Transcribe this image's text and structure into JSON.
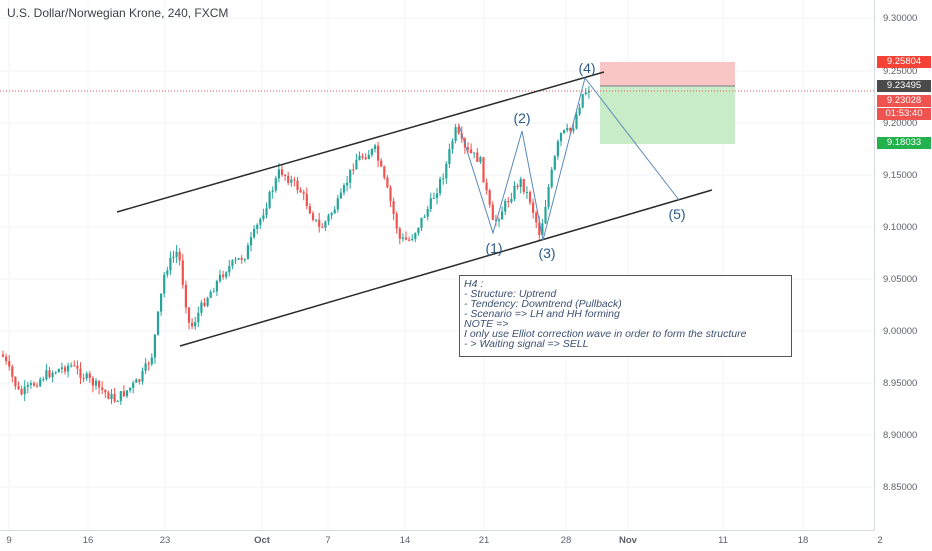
{
  "header": {
    "title": "U.S. Dollar/Norwegian Krone, 240, FXCM"
  },
  "price_axis": {
    "labels": [
      "9.30000",
      "9.25000",
      "9.20000",
      "9.15000",
      "9.10000",
      "9.05000",
      "9.00000",
      "8.95000",
      "8.90000",
      "8.85000"
    ],
    "badges": [
      {
        "text": "9.25804",
        "color": "#f44336"
      },
      {
        "text": "9.23495",
        "color": "#4a4a4a"
      },
      {
        "text": "9.23028",
        "color": "#ef5350"
      },
      {
        "text": "01:53:40",
        "color": "#ef5350"
      },
      {
        "text": "9.18033",
        "color": "#22b14c"
      }
    ]
  },
  "time_axis": {
    "labels": [
      "9",
      "16",
      "23",
      "Oct",
      "7",
      "14",
      "21",
      "28",
      "Nov",
      "11",
      "18",
      "2"
    ]
  },
  "waves": [
    "(1)",
    "(2)",
    "(3)",
    "(4)",
    "(5)"
  ],
  "note": {
    "lines": [
      "H4 :",
      "- Structure: Uptrend",
      "- Tendency: Downtrend (Pullback)",
      "-   Scenario =>  LH and HH forming",
      "NOTE =>",
      "I only use Elliot correction wave in order to form the structure",
      "- > Waiting signal => SELL"
    ]
  },
  "colors": {
    "up": "#26a69a",
    "down": "#ef5350",
    "channel": "#2b2b2b",
    "wave_line": "#5a8ab8",
    "stop_zone": "#f9c6c6",
    "target_zone": "#c8ecc8"
  }
}
